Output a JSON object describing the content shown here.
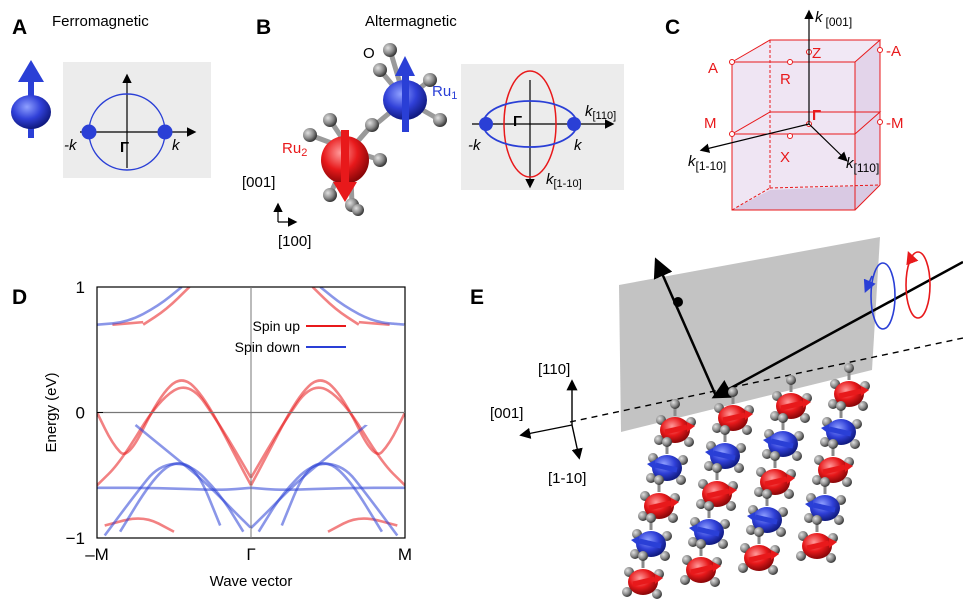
{
  "colors": {
    "spin_up": "#e8191b",
    "spin_down": "#2a3fd6",
    "panel_bg": "#ececec",
    "atom_gray": "#8a8a8a",
    "bz_fill": "#e8d8ee"
  },
  "panelA": {
    "letter": "A",
    "title": "Ferromagnetic",
    "k_neg": "-k",
    "k_pos": "k",
    "gamma": "Γ"
  },
  "panelB": {
    "letter": "B",
    "title": "Altermagnetic",
    "oxygen": "O",
    "ru1": "Ru",
    "ru1_sub": "1",
    "ru2": "Ru",
    "ru2_sub": "2",
    "axis_001": "[001]",
    "axis_100": "[100]",
    "k_neg": "-k",
    "k_pos": "k",
    "gamma": "Γ",
    "k110": "k",
    "k110_sub": "[110]",
    "k1m10": "k",
    "k1m10_sub": "[1-10]"
  },
  "panelC": {
    "letter": "C",
    "kz": "k",
    "kz_sub": "[001]",
    "A": "A",
    "mA": "-A",
    "Z": "Z",
    "R": "R",
    "M": "M",
    "mM": "-M",
    "Gamma": "Γ",
    "X": "X",
    "k1m10": "k",
    "k1m10_sub": "[1-10]",
    "k110": "k",
    "k110_sub": "[110]"
  },
  "panelE": {
    "letter": "E",
    "axis_110": "[110]",
    "axis_001": "[001]",
    "axis_1m10": "[1-10]"
  },
  "chart_data": {
    "type": "line",
    "panel_letter": "D",
    "xlabel": "Wave vector",
    "ylabel": "Energy (eV)",
    "ylim": [
      -1,
      1
    ],
    "x_ticks": [
      "–M",
      "Γ",
      "M"
    ],
    "y_ticks": [
      1,
      0,
      -1
    ],
    "legend_position": "top-center",
    "series": [
      {
        "name": "Spin up",
        "color": "#e8191b",
        "bands": [
          [
            [
              -1.0,
              0.0
            ],
            [
              -0.9,
              -0.25
            ],
            [
              -0.8,
              -0.38
            ],
            [
              -0.6,
              0.12
            ],
            [
              -0.45,
              0.3
            ],
            [
              -0.3,
              0.12
            ],
            [
              -0.1,
              -0.35
            ],
            [
              0.0,
              -0.58
            ]
          ],
          [
            [
              0.0,
              -0.58
            ],
            [
              0.1,
              -0.35
            ],
            [
              0.3,
              0.12
            ],
            [
              0.45,
              0.3
            ],
            [
              0.6,
              0.12
            ],
            [
              0.8,
              -0.38
            ],
            [
              0.9,
              -0.25
            ],
            [
              1.0,
              0.0
            ]
          ],
          [
            [
              -1.0,
              -0.58
            ],
            [
              -0.85,
              -0.4
            ],
            [
              -0.6,
              0.1
            ],
            [
              -0.4,
              0.25
            ],
            [
              -0.2,
              -0.1
            ],
            [
              0.0,
              -0.52
            ]
          ],
          [
            [
              0.0,
              -0.52
            ],
            [
              0.2,
              -0.1
            ],
            [
              0.4,
              0.25
            ],
            [
              0.6,
              0.1
            ],
            [
              0.85,
              -0.4
            ],
            [
              1.0,
              -0.58
            ]
          ],
          [
            [
              -0.7,
              0.7
            ],
            [
              -0.55,
              0.82
            ],
            [
              -0.4,
              1.0
            ]
          ],
          [
            [
              0.4,
              1.0
            ],
            [
              0.55,
              0.82
            ],
            [
              0.7,
              0.7
            ]
          ],
          [
            [
              -0.9,
              0.7
            ],
            [
              -0.7,
              0.72
            ]
          ],
          [
            [
              0.7,
              0.72
            ],
            [
              0.9,
              0.7
            ]
          ],
          [
            [
              -0.95,
              -0.9
            ],
            [
              -0.7,
              -0.82
            ],
            [
              -0.5,
              -0.95
            ]
          ],
          [
            [
              0.5,
              -0.95
            ],
            [
              0.7,
              -0.82
            ],
            [
              0.95,
              -0.9
            ]
          ]
        ]
      },
      {
        "name": "Spin down",
        "color": "#2a3fd6",
        "bands": [
          [
            [
              -1.0,
              0.7
            ],
            [
              -0.8,
              0.72
            ],
            [
              -0.6,
              0.85
            ],
            [
              -0.45,
              1.0
            ]
          ],
          [
            [
              0.45,
              1.0
            ],
            [
              0.6,
              0.85
            ],
            [
              0.8,
              0.72
            ],
            [
              1.0,
              0.7
            ]
          ],
          [
            [
              -0.75,
              -0.1
            ],
            [
              -0.55,
              -0.3
            ],
            [
              -0.3,
              -0.55
            ],
            [
              -0.1,
              -0.8
            ],
            [
              0.0,
              -0.92
            ]
          ],
          [
            [
              0.0,
              -0.92
            ],
            [
              0.1,
              -0.8
            ],
            [
              0.3,
              -0.55
            ],
            [
              0.55,
              -0.3
            ],
            [
              0.75,
              -0.1
            ]
          ],
          [
            [
              -0.95,
              -0.98
            ],
            [
              -0.75,
              -0.65
            ],
            [
              -0.6,
              -0.42
            ],
            [
              -0.4,
              -0.4
            ],
            [
              -0.2,
              -0.65
            ],
            [
              -0.05,
              -0.95
            ]
          ],
          [
            [
              0.05,
              -0.95
            ],
            [
              0.2,
              -0.65
            ],
            [
              0.4,
              -0.4
            ],
            [
              0.6,
              -0.42
            ],
            [
              0.75,
              -0.65
            ],
            [
              0.95,
              -0.98
            ]
          ],
          [
            [
              -1.0,
              -0.6
            ],
            [
              -0.6,
              -0.6
            ],
            [
              -0.2,
              -0.62
            ],
            [
              0.0,
              -0.6
            ]
          ],
          [
            [
              0.0,
              -0.6
            ],
            [
              0.2,
              -0.62
            ],
            [
              0.6,
              -0.6
            ],
            [
              1.0,
              -0.6
            ]
          ],
          [
            [
              -0.85,
              -0.95
            ],
            [
              -0.65,
              -0.55
            ],
            [
              -0.5,
              -0.38
            ],
            [
              -0.35,
              -0.45
            ],
            [
              -0.2,
              -0.9
            ]
          ],
          [
            [
              0.2,
              -0.9
            ],
            [
              0.35,
              -0.45
            ],
            [
              0.5,
              -0.38
            ],
            [
              0.65,
              -0.55
            ],
            [
              0.85,
              -0.95
            ]
          ]
        ]
      }
    ]
  }
}
